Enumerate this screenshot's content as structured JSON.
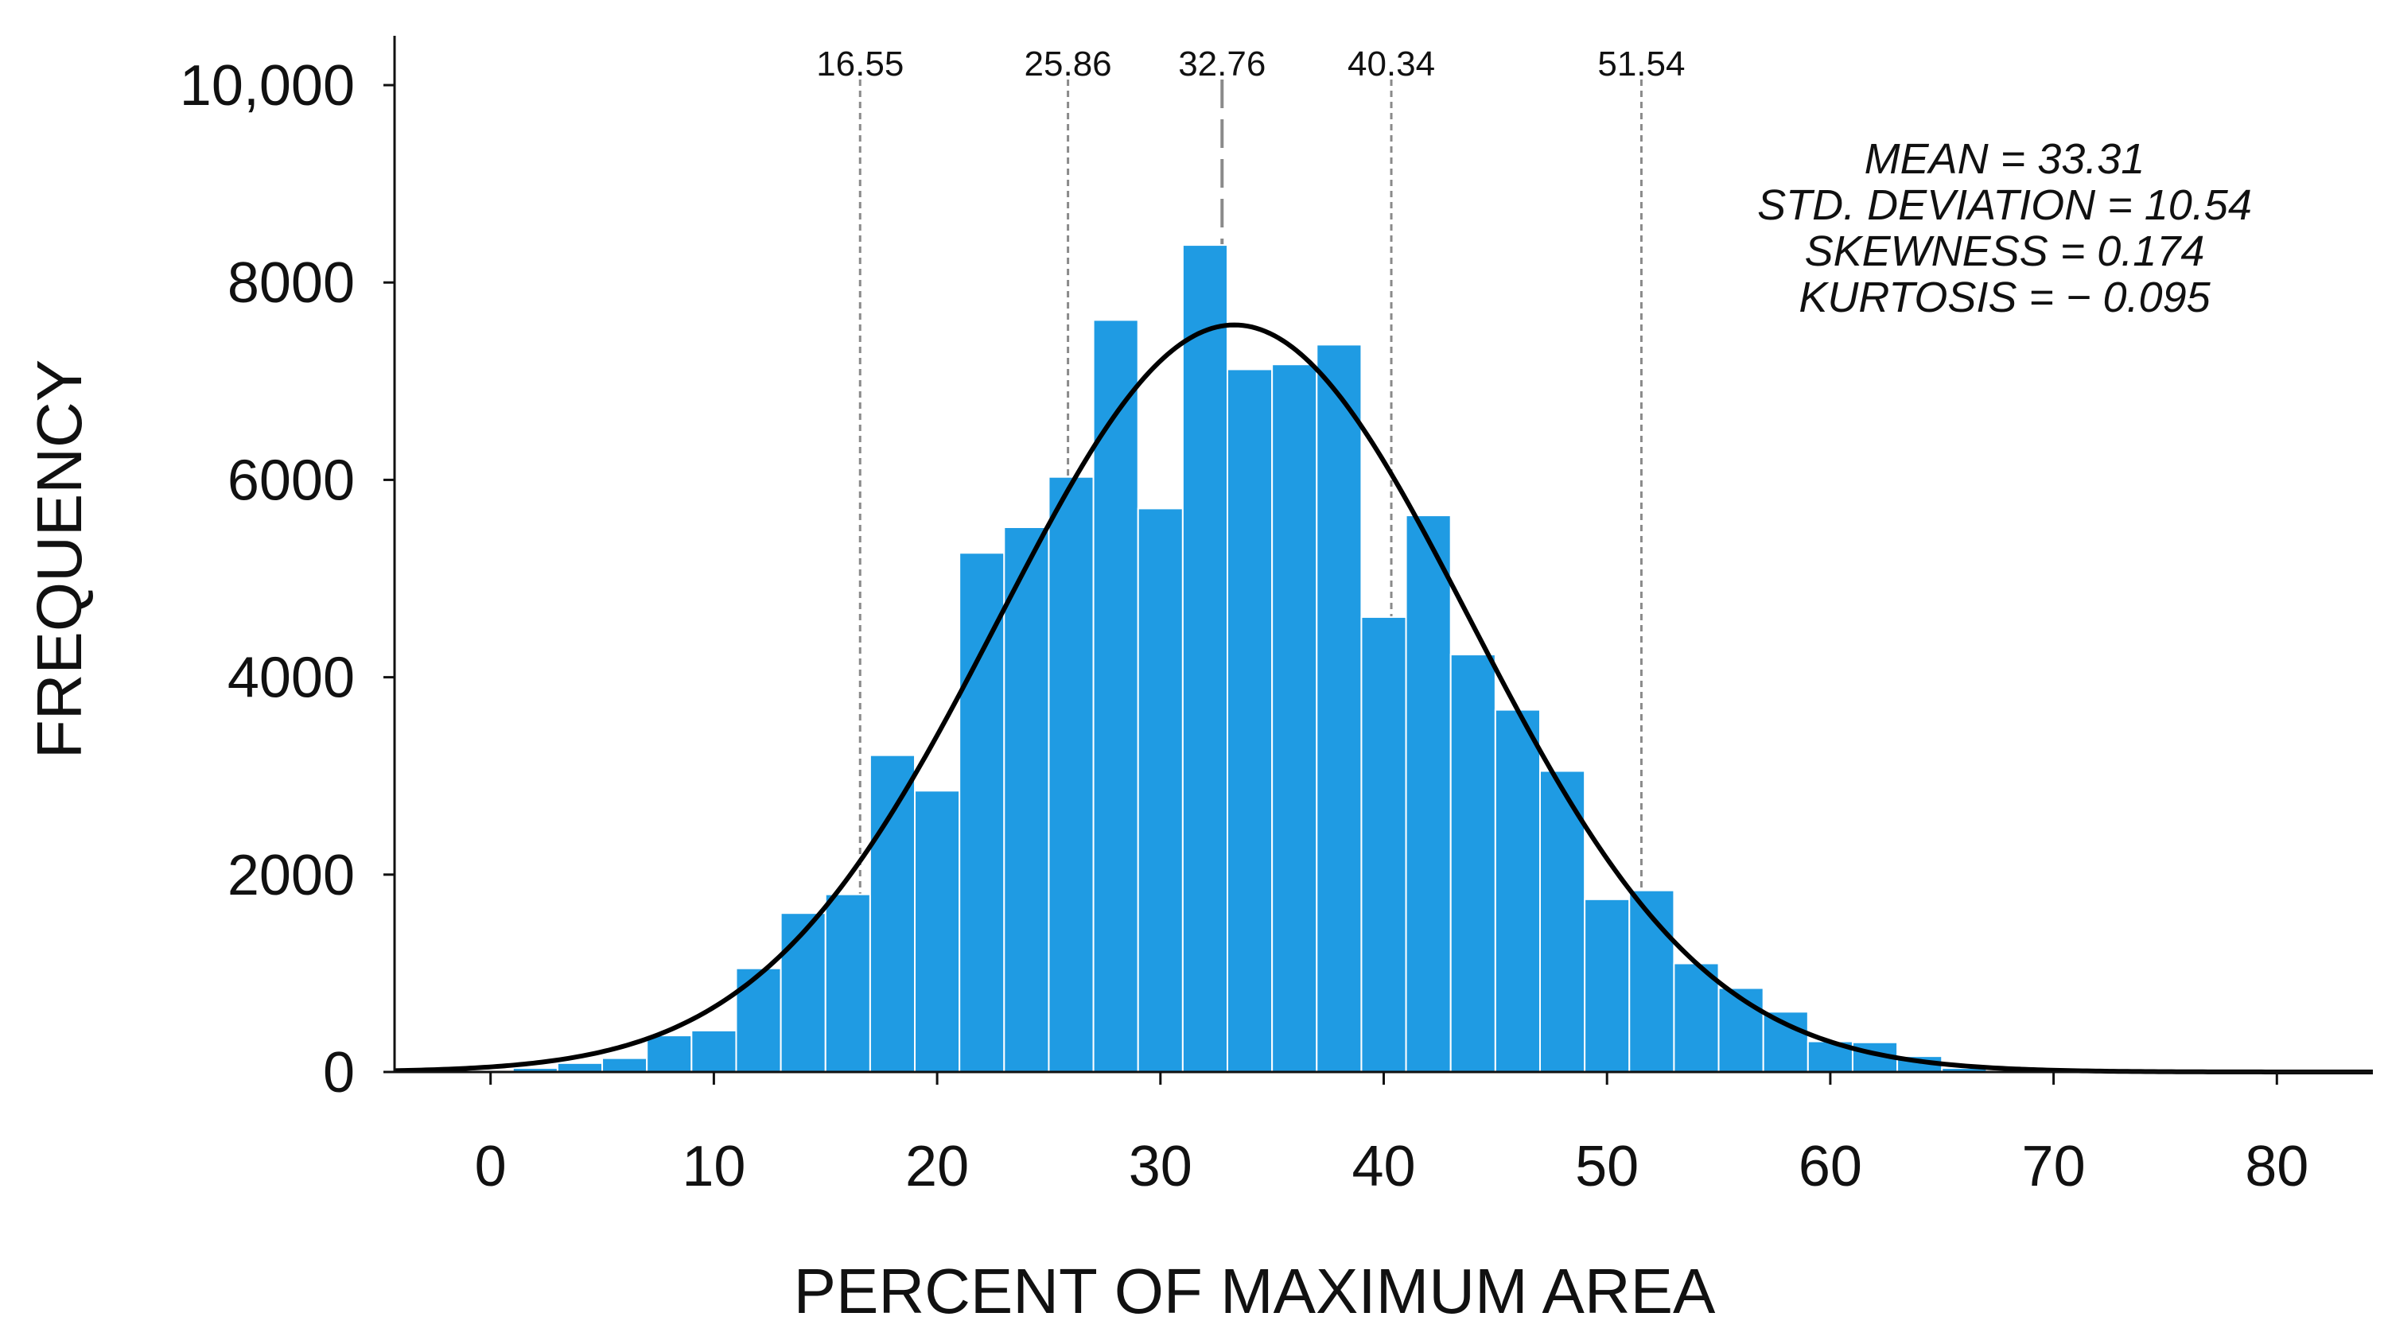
{
  "chart_data": {
    "type": "bar",
    "subtype": "histogram",
    "xlabel": "PERCENT OF MAXIMUM AREA",
    "ylabel": "FREQUENCY",
    "xlim": [
      -4.3,
      84.3
    ],
    "ylim": [
      0,
      10500
    ],
    "x_ticks": [
      0,
      10,
      20,
      30,
      40,
      50,
      60,
      70,
      80
    ],
    "x_tick_labels": [
      "0",
      "10",
      "20",
      "30",
      "40",
      "50",
      "60",
      "70",
      "80"
    ],
    "y_ticks": [
      0,
      2000,
      4000,
      6000,
      8000,
      10000
    ],
    "y_tick_labels": [
      "0",
      "2000",
      "4000",
      "6000",
      "8000",
      "10,000"
    ],
    "bin_width": 2,
    "bins": [
      {
        "start": 1,
        "value": 40
      },
      {
        "start": 3,
        "value": 90
      },
      {
        "start": 5,
        "value": 140
      },
      {
        "start": 7,
        "value": 370
      },
      {
        "start": 9,
        "value": 420
      },
      {
        "start": 11,
        "value": 1050
      },
      {
        "start": 13,
        "value": 1610
      },
      {
        "start": 15,
        "value": 1800
      },
      {
        "start": 17,
        "value": 3210
      },
      {
        "start": 19,
        "value": 2850
      },
      {
        "start": 21,
        "value": 5260
      },
      {
        "start": 23,
        "value": 5520
      },
      {
        "start": 25,
        "value": 6030
      },
      {
        "start": 27,
        "value": 7620
      },
      {
        "start": 29,
        "value": 5710
      },
      {
        "start": 31,
        "value": 8380
      },
      {
        "start": 33,
        "value": 7120
      },
      {
        "start": 35,
        "value": 7170
      },
      {
        "start": 37,
        "value": 7370
      },
      {
        "start": 39,
        "value": 4610
      },
      {
        "start": 41,
        "value": 5640
      },
      {
        "start": 43,
        "value": 4230
      },
      {
        "start": 45,
        "value": 3670
      },
      {
        "start": 47,
        "value": 3050
      },
      {
        "start": 49,
        "value": 1750
      },
      {
        "start": 51,
        "value": 1840
      },
      {
        "start": 53,
        "value": 1100
      },
      {
        "start": 55,
        "value": 850
      },
      {
        "start": 57,
        "value": 610
      },
      {
        "start": 59,
        "value": 310
      },
      {
        "start": 61,
        "value": 300
      },
      {
        "start": 63,
        "value": 160
      },
      {
        "start": 65,
        "value": 40
      }
    ],
    "normal_curve": {
      "mean": 33.31,
      "sd": 10.54,
      "peak": 7570
    },
    "percentile_lines": [
      {
        "value": 16.55,
        "label": "16.55",
        "style": "dotted"
      },
      {
        "value": 25.86,
        "label": "25.86",
        "style": "dotted"
      },
      {
        "value": 32.76,
        "label": "32.76",
        "style": "dashed"
      },
      {
        "value": 40.34,
        "label": "40.34",
        "style": "dotted"
      },
      {
        "value": 51.54,
        "label": "51.54",
        "style": "dotted"
      }
    ],
    "stats": [
      "MEAN = 33.31",
      "STD. DEVIATION = 10.54",
      "SKEWNESS = 0.174",
      "KURTOSIS = − 0.095"
    ],
    "colors": {
      "bar": "#1f9be3",
      "curve": "#000000",
      "reference_line": "#8a8a8a"
    }
  }
}
